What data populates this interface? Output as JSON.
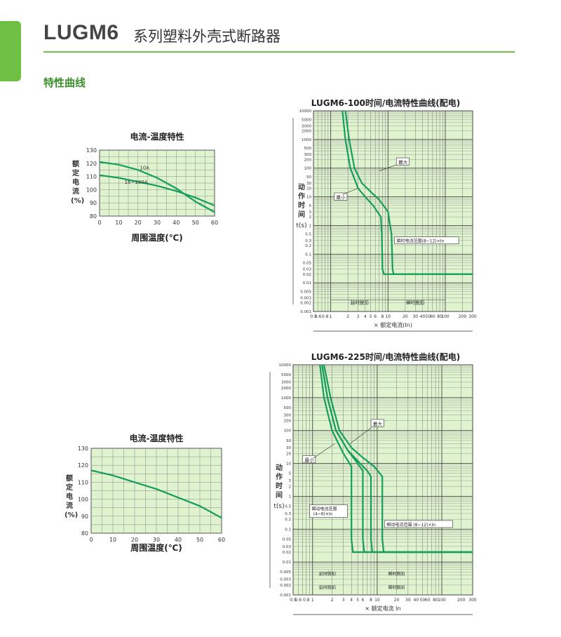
{
  "header": {
    "product": "LUGM6",
    "description": "系列塑料外壳式断路器",
    "section": "特性曲线"
  },
  "colors": {
    "accent": "#6fbf44",
    "curve": "#159e5a",
    "grid_bg": "#dff3cf"
  },
  "temp_chart_1": {
    "title": "电流-温度特性",
    "ylabel": "额定电流(%)",
    "xlabel": "周围温度(℃)",
    "x_ticks": [
      "0",
      "10",
      "20",
      "30",
      "40",
      "50",
      "60"
    ],
    "y_ticks": [
      "80",
      "90",
      "100",
      "110",
      "120",
      "130"
    ],
    "label_a": "10A",
    "label_b": "16~100A"
  },
  "temp_chart_2": {
    "title": "电流-温度特性",
    "ylabel": "额定电流(%)",
    "xlabel": "周围温度(℃)",
    "x_ticks": [
      "0",
      "10",
      "20",
      "30",
      "40",
      "50",
      "60"
    ],
    "y_ticks": [
      "80",
      "90",
      "100",
      "110",
      "120",
      "130"
    ]
  },
  "trip_chart_1": {
    "title": "LUGM6-100时间/电流特性曲线(配电)",
    "ylabel_chars": [
      "动",
      "作",
      "时",
      "间"
    ],
    "ylabel_unit": "t(s)",
    "xlabel": "× 额定电流(In)",
    "y_ticks": [
      "10000",
      "5000",
      "3000",
      "2000",
      "1000",
      "500",
      "300",
      "200",
      "100",
      "50",
      "30",
      "20",
      "10",
      "5",
      "3",
      "2",
      "1",
      "0.5",
      "0.3",
      "0.2",
      "0.1",
      "0.05",
      "0.03",
      "0.02",
      "0.01",
      "0.005",
      "0.003",
      "0.002",
      "0.001"
    ],
    "x_ticks": [
      "0.5",
      "0.6",
      "0.8",
      "1",
      "2",
      "3",
      "4",
      "5",
      "6",
      "8",
      "10",
      "20",
      "30",
      "40",
      "50",
      "60",
      "80",
      "100",
      "200",
      "300"
    ],
    "label_max": "最大",
    "label_min": "最小",
    "label_range": "瞬时电流范围(8~12)×In",
    "label_delay": "延时脱扣",
    "label_instant": "瞬时脱扣"
  },
  "trip_chart_2": {
    "title": "LUGM6-225时间/电流特性曲线(配电)",
    "ylabel_chars": [
      "动",
      "作",
      "时",
      "间"
    ],
    "ylabel_unit": "t(s)",
    "xlabel": "× 额定电流 In",
    "y_ticks": [
      "10000",
      "5000",
      "3000",
      "2000",
      "1000",
      "500",
      "300",
      "200",
      "100",
      "50",
      "30",
      "20",
      "10",
      "5",
      "3",
      "2",
      "1",
      "0.5",
      "0.3",
      "0.2",
      "0.1",
      "0.05",
      "0.03",
      "0.02",
      "0.01",
      "0.005",
      "0.003",
      "0.002",
      "0.001"
    ],
    "x_ticks": [
      "0.5",
      "0.6",
      "0.8",
      "1",
      "2",
      "3",
      "4",
      "5",
      "6",
      "8",
      "10",
      "20",
      "30",
      "40",
      "50",
      "60",
      "80",
      "100",
      "200",
      "300"
    ],
    "label_max": "最大",
    "label_min": "最小",
    "label_range_left": "瞬动电流范围",
    "label_range_left_2": "(4~6)×In",
    "label_range_right": "瞬动电流范围 (8~12)×In",
    "label_delay": "延时脱扣",
    "label_instant": "瞬时脱扣",
    "label_delay_2": "延时脱扣",
    "label_instant_2": "瞬时脱扣"
  },
  "chart_data": [
    {
      "type": "line",
      "title": "电流-温度特性",
      "xlabel": "周围温度(℃)",
      "ylabel": "额定电流(%)",
      "xlim": [
        0,
        60
      ],
      "ylim": [
        80,
        130
      ],
      "grid": true,
      "series": [
        {
          "name": "10A",
          "x": [
            0,
            10,
            20,
            30,
            40,
            50,
            60
          ],
          "values": [
            121,
            119,
            115,
            109,
            101,
            91,
            83
          ]
        },
        {
          "name": "16~100A",
          "x": [
            0,
            10,
            20,
            30,
            40,
            50,
            60
          ],
          "values": [
            111,
            109,
            106,
            103,
            99,
            94,
            88
          ]
        }
      ]
    },
    {
      "type": "line",
      "title": "电流-温度特性",
      "xlabel": "周围温度(℃)",
      "ylabel": "额定电流(%)",
      "xlim": [
        0,
        60
      ],
      "ylim": [
        80,
        130
      ],
      "grid": true,
      "series": [
        {
          "x": [
            0,
            10,
            20,
            30,
            40,
            50,
            60
          ],
          "values": [
            117,
            114,
            110,
            106,
            101,
            96,
            89
          ]
        }
      ]
    },
    {
      "type": "line",
      "title": "LUGM6-100时间/电流特性曲线(配电)",
      "xlabel": "× 额定电流(In)",
      "ylabel": "t(s)",
      "x_scale": "log",
      "y_scale": "log",
      "xlim": [
        0.5,
        300
      ],
      "ylim": [
        0.001,
        10000
      ],
      "series": [
        {
          "name": "最小",
          "x": [
            1.6,
            1.8,
            2.2,
            3,
            4,
            5.5,
            7.5,
            7.8,
            8,
            8.5,
            12,
            300
          ],
          "values": [
            10000,
            1000,
            100,
            20,
            10,
            5,
            2,
            0.5,
            0.03,
            0.02,
            0.02,
            0.02
          ]
        },
        {
          "name": "最大",
          "x": [
            1.8,
            2.1,
            2.6,
            3.5,
            5,
            7,
            10,
            11.5,
            12,
            12.5,
            15,
            300
          ],
          "values": [
            10000,
            1000,
            100,
            30,
            15,
            8,
            3,
            0.5,
            0.03,
            0.02,
            0.02,
            0.02
          ]
        }
      ]
    },
    {
      "type": "line",
      "title": "LUGM6-225时间/电流特性曲线(配电)",
      "xlabel": "× 额定电流 In",
      "ylabel": "t(s)",
      "x_scale": "log",
      "y_scale": "log",
      "xlim": [
        0.5,
        300
      ],
      "ylim": [
        0.001,
        10000
      ],
      "series": [
        {
          "name": "最小",
          "x": [
            1.3,
            1.5,
            2,
            3,
            4,
            4,
            4.2,
            4.5,
            300
          ],
          "values": [
            10000,
            1000,
            100,
            20,
            8,
            0.05,
            0.02,
            0.02,
            0.02
          ]
        },
        {
          "x": [
            1.4,
            1.7,
            2.3,
            3.5,
            5,
            6,
            6,
            6.3,
            300
          ],
          "values": [
            10000,
            1000,
            100,
            25,
            10,
            6,
            0.05,
            0.02,
            0.02
          ]
        },
        {
          "x": [
            1.4,
            1.7,
            2.3,
            3.5,
            5,
            7,
            8,
            8,
            8.4,
            300
          ],
          "values": [
            10000,
            1000,
            100,
            25,
            12,
            6,
            4,
            0.05,
            0.02,
            0.02
          ]
        },
        {
          "name": "最大",
          "x": [
            1.5,
            1.9,
            2.6,
            4,
            6,
            9,
            12,
            12,
            12.6,
            300
          ],
          "values": [
            10000,
            1000,
            100,
            30,
            15,
            8,
            4,
            0.05,
            0.02,
            0.02
          ]
        }
      ]
    }
  ]
}
